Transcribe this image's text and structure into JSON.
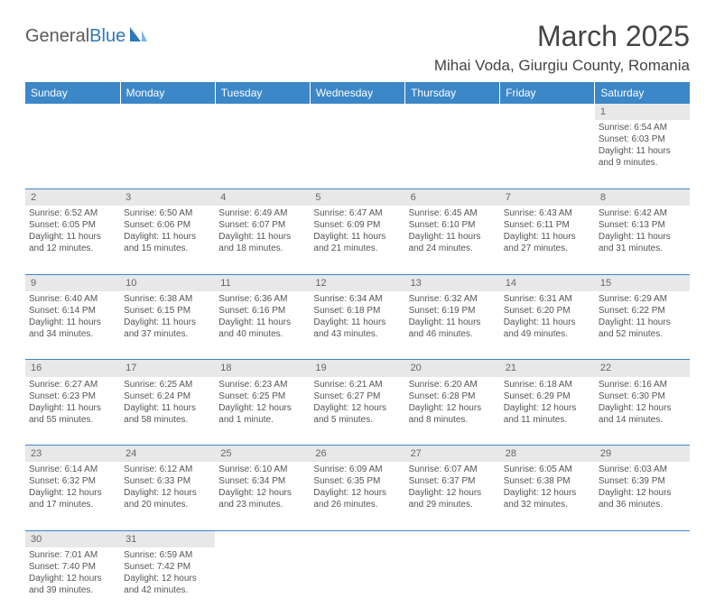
{
  "logo": {
    "part1": "General",
    "part2": "Blue"
  },
  "title": "March 2025",
  "location": "Mihai Voda, Giurgiu County, Romania",
  "colors": {
    "header_bg": "#3b87c8",
    "header_text": "#ffffff",
    "daynum_bg": "#e8e8e8",
    "border": "#3b87c8",
    "logo_gray": "#5a5a5a",
    "logo_blue": "#2f78b8"
  },
  "weekdays": [
    "Sunday",
    "Monday",
    "Tuesday",
    "Wednesday",
    "Thursday",
    "Friday",
    "Saturday"
  ],
  "weeks": [
    [
      null,
      null,
      null,
      null,
      null,
      null,
      {
        "d": "1",
        "sr": "Sunrise: 6:54 AM",
        "ss": "Sunset: 6:03 PM",
        "dl1": "Daylight: 11 hours",
        "dl2": "and 9 minutes."
      }
    ],
    [
      {
        "d": "2",
        "sr": "Sunrise: 6:52 AM",
        "ss": "Sunset: 6:05 PM",
        "dl1": "Daylight: 11 hours",
        "dl2": "and 12 minutes."
      },
      {
        "d": "3",
        "sr": "Sunrise: 6:50 AM",
        "ss": "Sunset: 6:06 PM",
        "dl1": "Daylight: 11 hours",
        "dl2": "and 15 minutes."
      },
      {
        "d": "4",
        "sr": "Sunrise: 6:49 AM",
        "ss": "Sunset: 6:07 PM",
        "dl1": "Daylight: 11 hours",
        "dl2": "and 18 minutes."
      },
      {
        "d": "5",
        "sr": "Sunrise: 6:47 AM",
        "ss": "Sunset: 6:09 PM",
        "dl1": "Daylight: 11 hours",
        "dl2": "and 21 minutes."
      },
      {
        "d": "6",
        "sr": "Sunrise: 6:45 AM",
        "ss": "Sunset: 6:10 PM",
        "dl1": "Daylight: 11 hours",
        "dl2": "and 24 minutes."
      },
      {
        "d": "7",
        "sr": "Sunrise: 6:43 AM",
        "ss": "Sunset: 6:11 PM",
        "dl1": "Daylight: 11 hours",
        "dl2": "and 27 minutes."
      },
      {
        "d": "8",
        "sr": "Sunrise: 6:42 AM",
        "ss": "Sunset: 6:13 PM",
        "dl1": "Daylight: 11 hours",
        "dl2": "and 31 minutes."
      }
    ],
    [
      {
        "d": "9",
        "sr": "Sunrise: 6:40 AM",
        "ss": "Sunset: 6:14 PM",
        "dl1": "Daylight: 11 hours",
        "dl2": "and 34 minutes."
      },
      {
        "d": "10",
        "sr": "Sunrise: 6:38 AM",
        "ss": "Sunset: 6:15 PM",
        "dl1": "Daylight: 11 hours",
        "dl2": "and 37 minutes."
      },
      {
        "d": "11",
        "sr": "Sunrise: 6:36 AM",
        "ss": "Sunset: 6:16 PM",
        "dl1": "Daylight: 11 hours",
        "dl2": "and 40 minutes."
      },
      {
        "d": "12",
        "sr": "Sunrise: 6:34 AM",
        "ss": "Sunset: 6:18 PM",
        "dl1": "Daylight: 11 hours",
        "dl2": "and 43 minutes."
      },
      {
        "d": "13",
        "sr": "Sunrise: 6:32 AM",
        "ss": "Sunset: 6:19 PM",
        "dl1": "Daylight: 11 hours",
        "dl2": "and 46 minutes."
      },
      {
        "d": "14",
        "sr": "Sunrise: 6:31 AM",
        "ss": "Sunset: 6:20 PM",
        "dl1": "Daylight: 11 hours",
        "dl2": "and 49 minutes."
      },
      {
        "d": "15",
        "sr": "Sunrise: 6:29 AM",
        "ss": "Sunset: 6:22 PM",
        "dl1": "Daylight: 11 hours",
        "dl2": "and 52 minutes."
      }
    ],
    [
      {
        "d": "16",
        "sr": "Sunrise: 6:27 AM",
        "ss": "Sunset: 6:23 PM",
        "dl1": "Daylight: 11 hours",
        "dl2": "and 55 minutes."
      },
      {
        "d": "17",
        "sr": "Sunrise: 6:25 AM",
        "ss": "Sunset: 6:24 PM",
        "dl1": "Daylight: 11 hours",
        "dl2": "and 58 minutes."
      },
      {
        "d": "18",
        "sr": "Sunrise: 6:23 AM",
        "ss": "Sunset: 6:25 PM",
        "dl1": "Daylight: 12 hours",
        "dl2": "and 1 minute."
      },
      {
        "d": "19",
        "sr": "Sunrise: 6:21 AM",
        "ss": "Sunset: 6:27 PM",
        "dl1": "Daylight: 12 hours",
        "dl2": "and 5 minutes."
      },
      {
        "d": "20",
        "sr": "Sunrise: 6:20 AM",
        "ss": "Sunset: 6:28 PM",
        "dl1": "Daylight: 12 hours",
        "dl2": "and 8 minutes."
      },
      {
        "d": "21",
        "sr": "Sunrise: 6:18 AM",
        "ss": "Sunset: 6:29 PM",
        "dl1": "Daylight: 12 hours",
        "dl2": "and 11 minutes."
      },
      {
        "d": "22",
        "sr": "Sunrise: 6:16 AM",
        "ss": "Sunset: 6:30 PM",
        "dl1": "Daylight: 12 hours",
        "dl2": "and 14 minutes."
      }
    ],
    [
      {
        "d": "23",
        "sr": "Sunrise: 6:14 AM",
        "ss": "Sunset: 6:32 PM",
        "dl1": "Daylight: 12 hours",
        "dl2": "and 17 minutes."
      },
      {
        "d": "24",
        "sr": "Sunrise: 6:12 AM",
        "ss": "Sunset: 6:33 PM",
        "dl1": "Daylight: 12 hours",
        "dl2": "and 20 minutes."
      },
      {
        "d": "25",
        "sr": "Sunrise: 6:10 AM",
        "ss": "Sunset: 6:34 PM",
        "dl1": "Daylight: 12 hours",
        "dl2": "and 23 minutes."
      },
      {
        "d": "26",
        "sr": "Sunrise: 6:09 AM",
        "ss": "Sunset: 6:35 PM",
        "dl1": "Daylight: 12 hours",
        "dl2": "and 26 minutes."
      },
      {
        "d": "27",
        "sr": "Sunrise: 6:07 AM",
        "ss": "Sunset: 6:37 PM",
        "dl1": "Daylight: 12 hours",
        "dl2": "and 29 minutes."
      },
      {
        "d": "28",
        "sr": "Sunrise: 6:05 AM",
        "ss": "Sunset: 6:38 PM",
        "dl1": "Daylight: 12 hours",
        "dl2": "and 32 minutes."
      },
      {
        "d": "29",
        "sr": "Sunrise: 6:03 AM",
        "ss": "Sunset: 6:39 PM",
        "dl1": "Daylight: 12 hours",
        "dl2": "and 36 minutes."
      }
    ],
    [
      {
        "d": "30",
        "sr": "Sunrise: 7:01 AM",
        "ss": "Sunset: 7:40 PM",
        "dl1": "Daylight: 12 hours",
        "dl2": "and 39 minutes."
      },
      {
        "d": "31",
        "sr": "Sunrise: 6:59 AM",
        "ss": "Sunset: 7:42 PM",
        "dl1": "Daylight: 12 hours",
        "dl2": "and 42 minutes."
      },
      null,
      null,
      null,
      null,
      null
    ]
  ]
}
